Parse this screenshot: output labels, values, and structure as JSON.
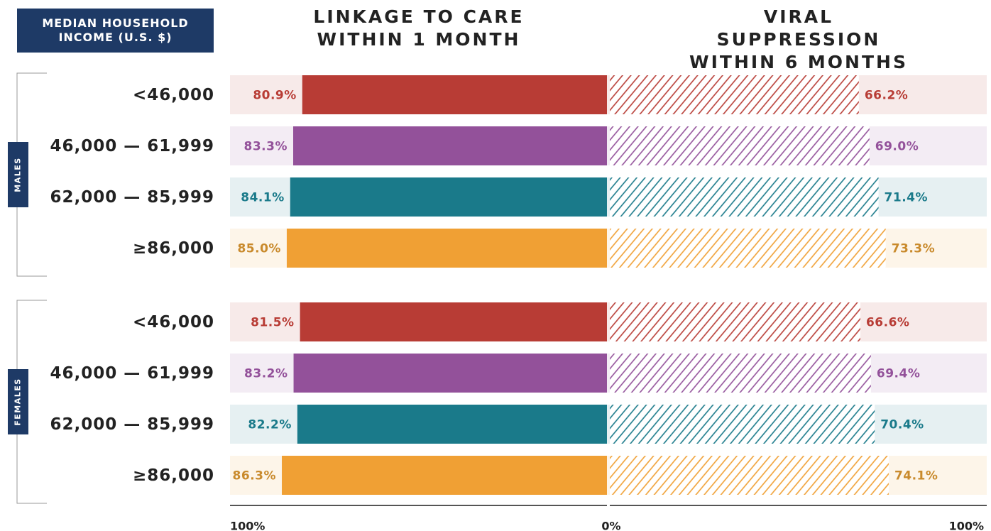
{
  "chart_data": {
    "type": "butterfly",
    "y_axis_label": "MEDIAN HOUSEHOLD INCOME (U.S. $)",
    "groups": [
      "MALES",
      "FEMALES"
    ],
    "categories": [
      "<46,000",
      "46,000 — 61,999",
      "62,000 — 85,999",
      "≥86,000",
      "<46,000",
      "46,000 — 61,999",
      "62,000 — 85,999",
      "≥86,000"
    ],
    "colors": [
      "#b83c35",
      "#93519a",
      "#1a7a8a",
      "#f0a034",
      "#b83c35",
      "#93519a",
      "#1a7a8a",
      "#f0a034"
    ],
    "label_colors": [
      "#b83c35",
      "#93519a",
      "#1a7a8a",
      "#c98a2c",
      "#b83c35",
      "#93519a",
      "#1a7a8a",
      "#c98a2c"
    ],
    "series": [
      {
        "name": "LINKAGE TO CARE WITHIN 1 MONTH",
        "side": "left",
        "pattern": "solid",
        "values": [
          80.9,
          83.3,
          84.1,
          85.0,
          81.5,
          83.2,
          82.2,
          86.3
        ],
        "value_labels": [
          "80.9%",
          "83.3%",
          "84.1%",
          "85.0%",
          "81.5%",
          "83.2%",
          "82.2%",
          "86.3%"
        ]
      },
      {
        "name": "VIRAL SUPPRESSION WITHIN 6 MONTHS",
        "side": "right",
        "pattern": "hatched",
        "values": [
          66.2,
          69.0,
          71.4,
          73.3,
          66.6,
          69.4,
          70.4,
          74.1
        ],
        "value_labels": [
          "66.2%",
          "69.0%",
          "71.4%",
          "73.3%",
          "66.6%",
          "69.4%",
          "70.4%",
          "74.1%"
        ]
      }
    ],
    "xlim": [
      0,
      100
    ],
    "xticks": [
      {
        "value": 0,
        "label": "0%"
      },
      {
        "value": 100,
        "label": "100%"
      }
    ]
  }
}
